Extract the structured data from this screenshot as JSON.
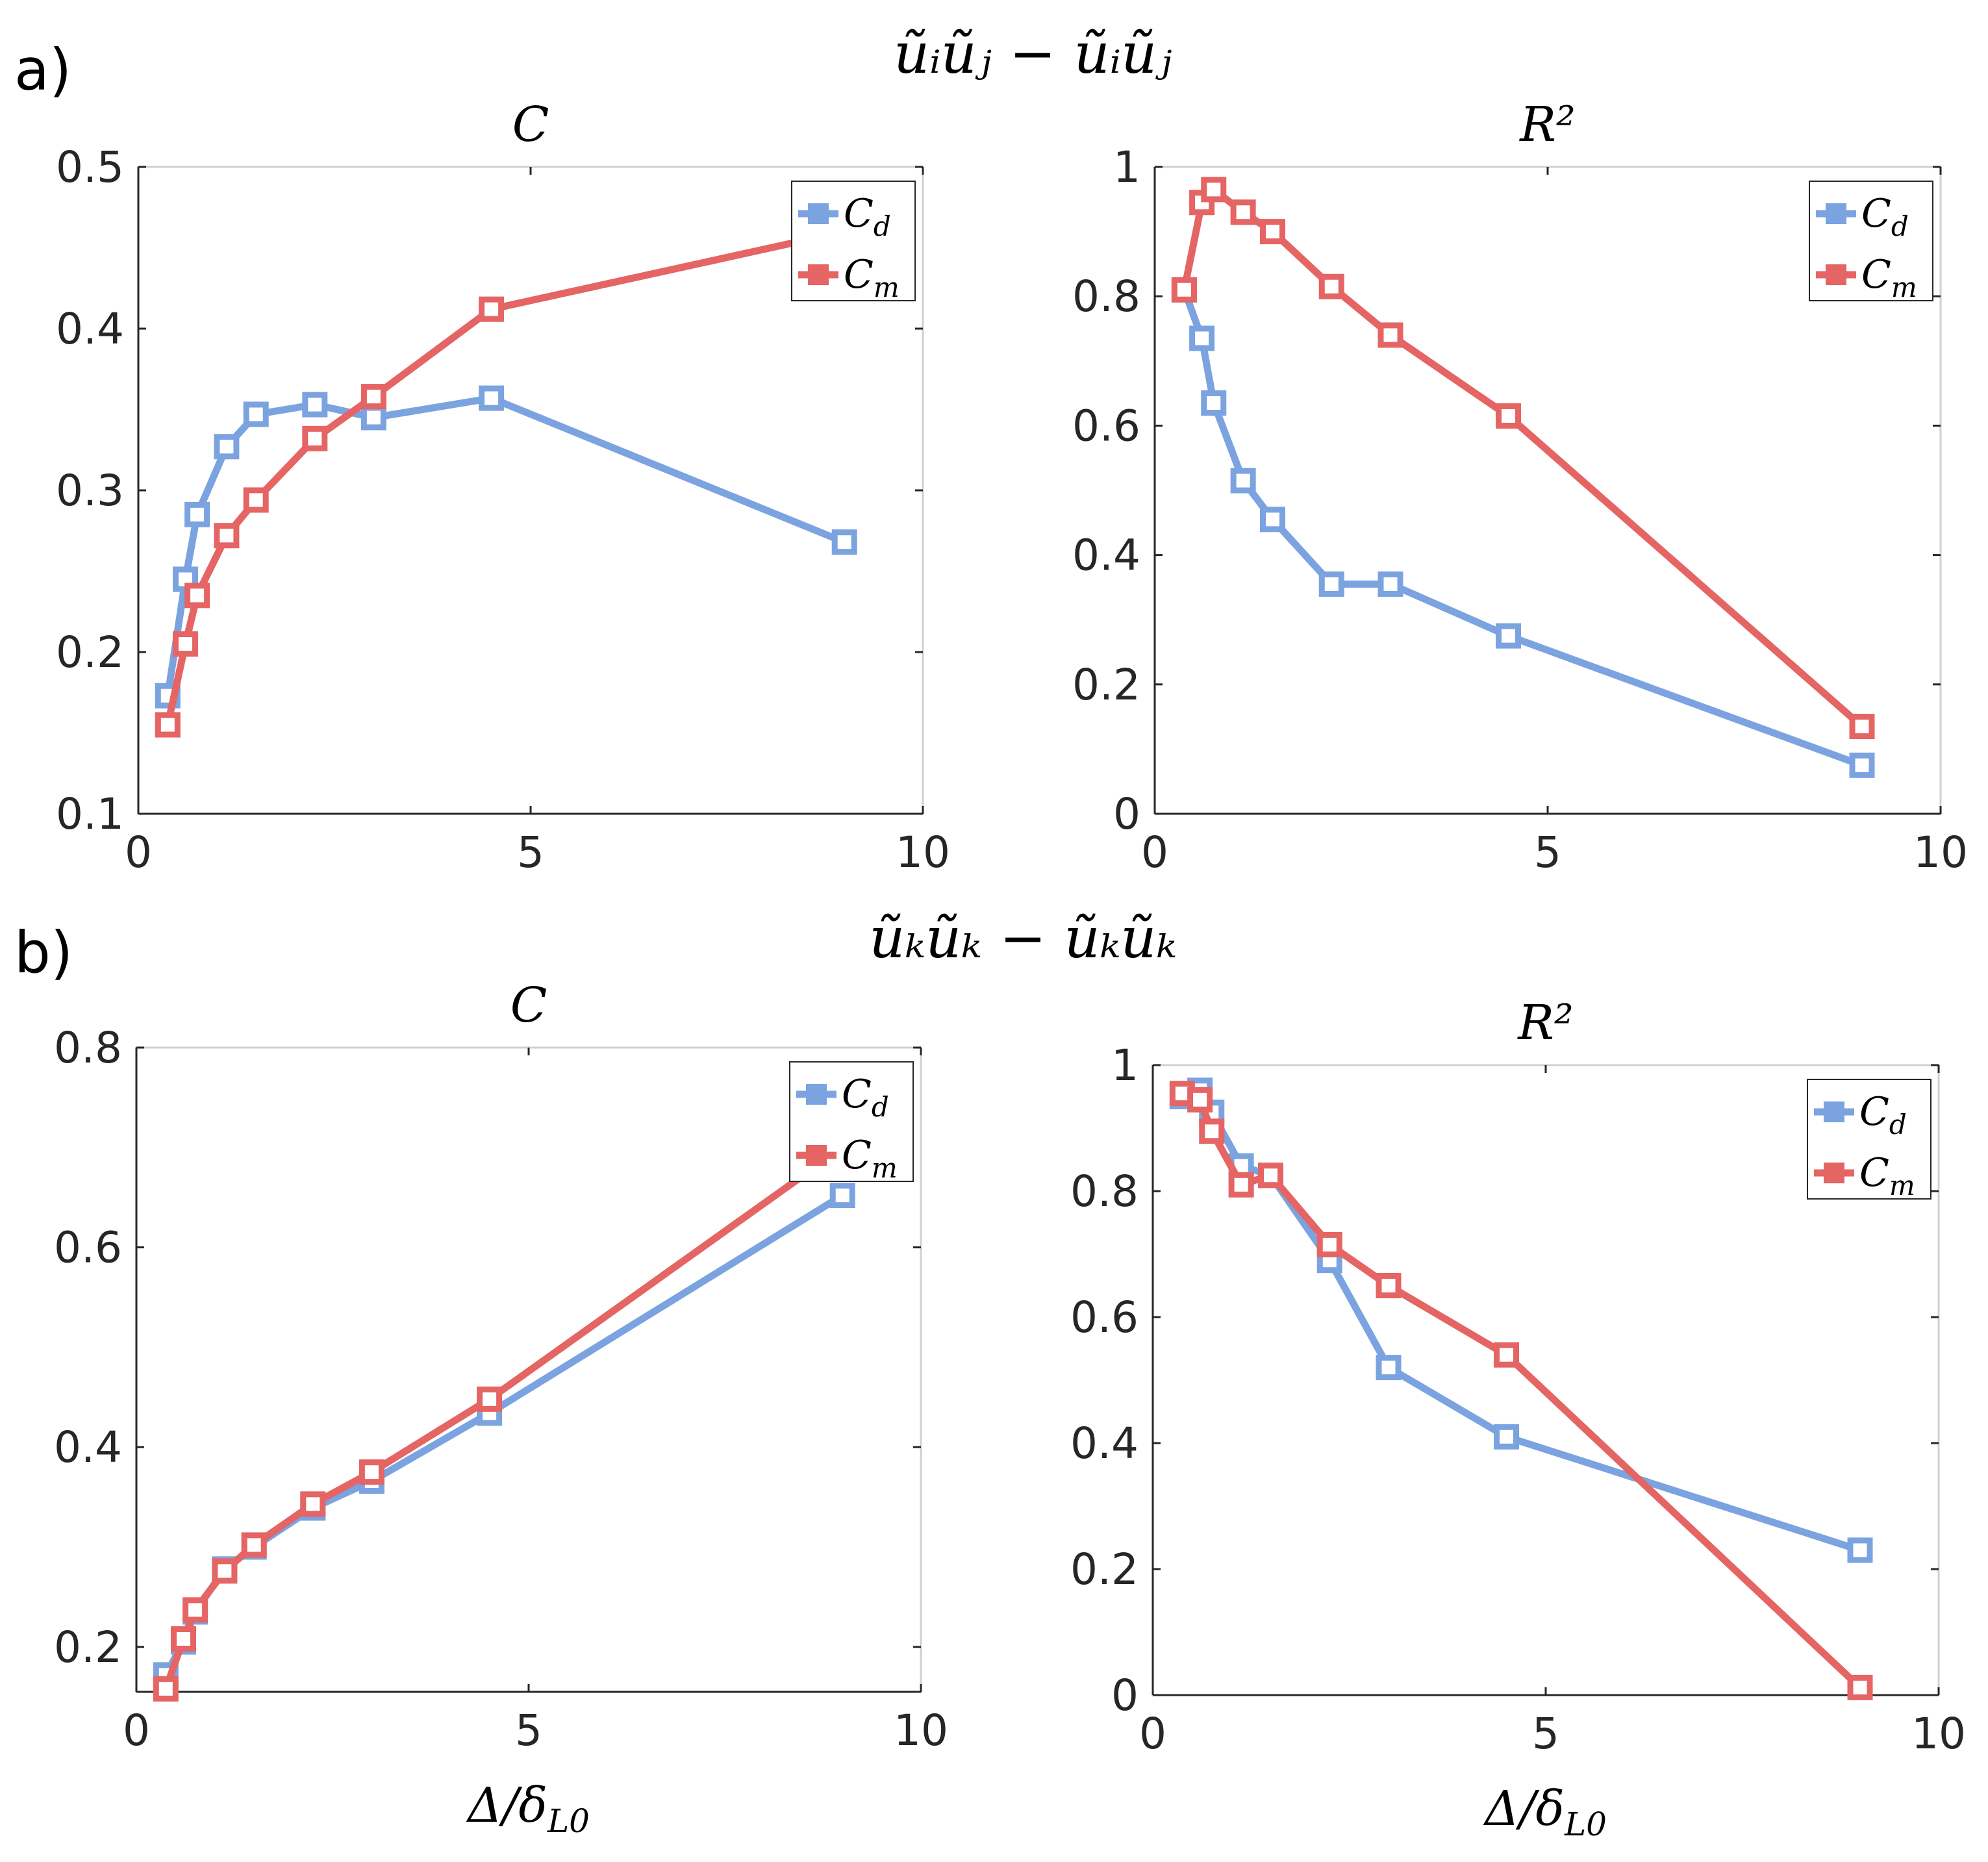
{
  "figure": {
    "panel_rows": [
      {
        "letter": "a)",
        "title": "ũᵢũⱼ − ũᵢũⱼ"
      },
      {
        "letter": "b)",
        "title": "ũₖũₖ − ũₖũₖ"
      }
    ]
  },
  "colors": {
    "blue": "#7BA3E0",
    "red": "#E56464",
    "axis": "#262626",
    "tick": "#d9d9d9"
  },
  "chart_data": [
    {
      "type": "line",
      "title": "C",
      "xlabel": "",
      "ylabel": "",
      "xlim": [
        0,
        10
      ],
      "ylim": [
        0.1,
        0.5
      ],
      "xticks": [
        "0",
        "5",
        "10"
      ],
      "yticks": [
        "0.1",
        "0.2",
        "0.3",
        "0.4",
        "0.5"
      ],
      "legend": {
        "placement": "top-right",
        "entries": [
          "Cd",
          "Cm"
        ]
      },
      "series": [
        {
          "name": "Cd",
          "color": "blue",
          "x": [
            0.375,
            0.6,
            0.75,
            1.125,
            1.5,
            2.25,
            3.0,
            4.5,
            9.0
          ],
          "y": [
            0.173,
            0.245,
            0.285,
            0.327,
            0.347,
            0.353,
            0.345,
            0.357,
            0.268
          ]
        },
        {
          "name": "Cm",
          "color": "red",
          "x": [
            0.375,
            0.6,
            0.75,
            1.125,
            1.5,
            2.25,
            3.0,
            4.5,
            9.0
          ],
          "y": [
            0.155,
            0.205,
            0.235,
            0.272,
            0.294,
            0.332,
            0.358,
            0.412,
            0.46
          ]
        }
      ]
    },
    {
      "type": "line",
      "title": "R²",
      "xlabel": "",
      "ylabel": "",
      "xlim": [
        0,
        10
      ],
      "ylim": [
        0,
        1
      ],
      "xticks": [
        "0",
        "5",
        "10"
      ],
      "yticks": [
        "0",
        "0.2",
        "0.4",
        "0.6",
        "0.8",
        "1"
      ],
      "legend": {
        "placement": "top-right",
        "entries": [
          "Cd",
          "Cm"
        ]
      },
      "series": [
        {
          "name": "Cd",
          "color": "blue",
          "x": [
            0.375,
            0.6,
            0.75,
            1.125,
            1.5,
            2.25,
            3.0,
            4.5,
            9.0
          ],
          "y": [
            0.81,
            0.735,
            0.635,
            0.515,
            0.455,
            0.355,
            0.355,
            0.275,
            0.075
          ]
        },
        {
          "name": "Cm",
          "color": "red",
          "x": [
            0.375,
            0.6,
            0.75,
            1.125,
            1.5,
            2.25,
            3.0,
            4.5,
            9.0
          ],
          "y": [
            0.81,
            0.945,
            0.965,
            0.93,
            0.9,
            0.815,
            0.74,
            0.615,
            0.135
          ]
        }
      ]
    },
    {
      "type": "line",
      "title": "C",
      "xlabel": "Δ/δL0",
      "ylabel": "",
      "xlim": [
        0,
        10
      ],
      "ylim": [
        0.155,
        0.8
      ],
      "xticks": [
        "0",
        "5",
        "10"
      ],
      "yticks": [
        "0.2",
        "0.4",
        "0.6",
        "0.8"
      ],
      "legend": {
        "placement": "top-right",
        "entries": [
          "Cd",
          "Cm"
        ]
      },
      "series": [
        {
          "name": "Cd",
          "color": "blue",
          "x": [
            0.375,
            0.6,
            0.75,
            1.125,
            1.5,
            2.25,
            3.0,
            4.5,
            9.0
          ],
          "y": [
            0.172,
            0.205,
            0.235,
            0.278,
            0.3,
            0.339,
            0.366,
            0.434,
            0.652
          ]
        },
        {
          "name": "Cm",
          "color": "red",
          "x": [
            0.375,
            0.6,
            0.75,
            1.125,
            1.5,
            2.25,
            3.0,
            4.5,
            9.0
          ],
          "y": [
            0.158,
            0.208,
            0.237,
            0.276,
            0.302,
            0.343,
            0.375,
            0.448,
            0.7
          ]
        }
      ]
    },
    {
      "type": "line",
      "title": "R²",
      "xlabel": "Δ/δL0",
      "ylabel": "",
      "xlim": [
        0,
        10
      ],
      "ylim": [
        0,
        1
      ],
      "xticks": [
        "0",
        "5",
        "10"
      ],
      "yticks": [
        "0",
        "0.2",
        "0.4",
        "0.6",
        "0.8",
        "1"
      ],
      "legend": {
        "placement": "top-right",
        "entries": [
          "Cd",
          "Cm"
        ]
      },
      "series": [
        {
          "name": "Cd",
          "color": "blue",
          "x": [
            0.375,
            0.6,
            0.75,
            1.125,
            1.5,
            2.25,
            3.0,
            4.5,
            9.0
          ],
          "y": [
            0.95,
            0.96,
            0.925,
            0.84,
            0.825,
            0.69,
            0.52,
            0.41,
            0.23
          ]
        },
        {
          "name": "Cm",
          "color": "red",
          "x": [
            0.375,
            0.6,
            0.75,
            1.125,
            1.5,
            2.25,
            3.0,
            4.5,
            9.0
          ],
          "y": [
            0.955,
            0.945,
            0.895,
            0.81,
            0.825,
            0.715,
            0.65,
            0.54,
            0.012
          ]
        }
      ]
    }
  ]
}
